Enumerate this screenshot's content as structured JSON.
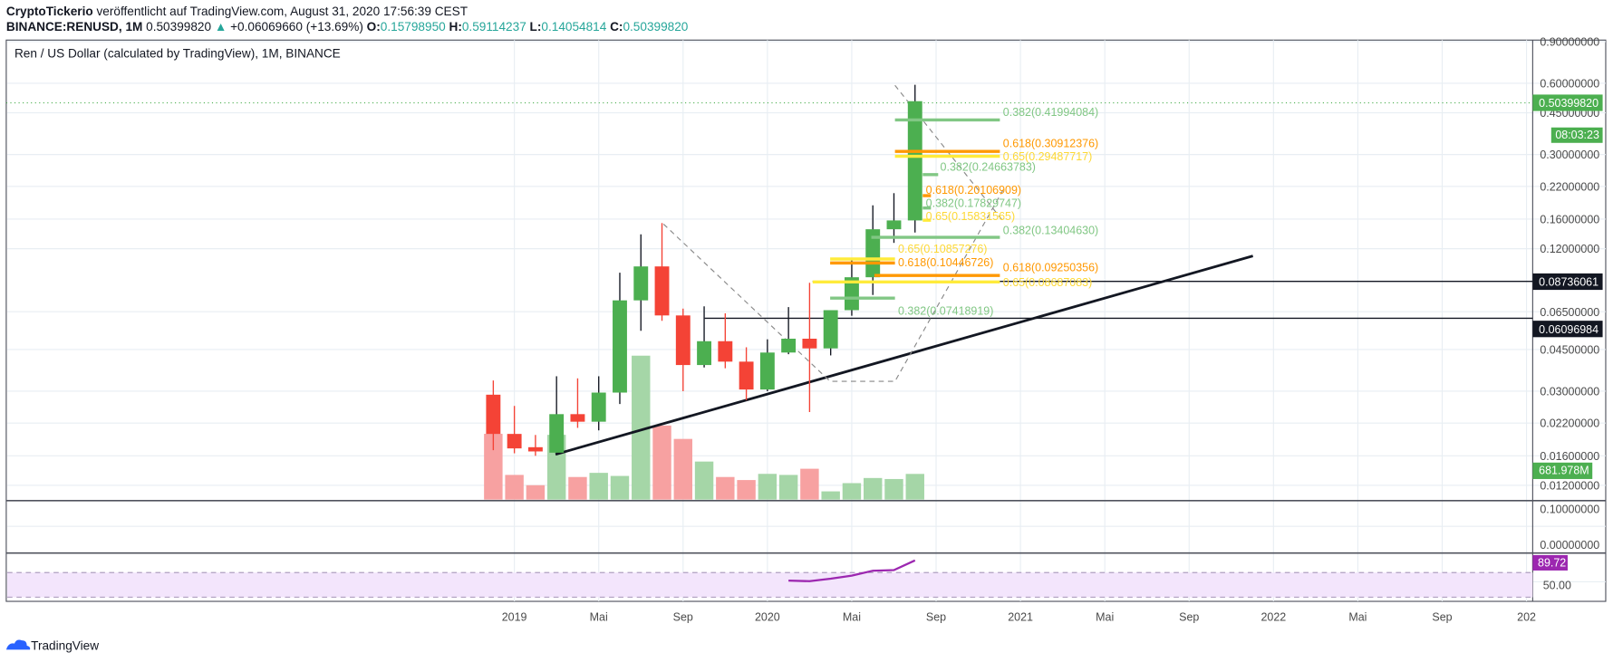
{
  "header": {
    "author": "CryptoTickerio",
    "published": " veröffentlicht auf TradingView.com, August 31, 2020 17:56:39 CEST",
    "symbol": "BINANCE:RENUSD, 1M",
    "last": "0.50399820",
    "change": "+0.06069660 (+13.69%)",
    "o_label": "O:",
    "o": "0.15798950",
    "h_label": "H:",
    "h": "0.59114237",
    "l_label": "L:",
    "l": "0.14054814",
    "c_label": "C:",
    "c": "0.50399820"
  },
  "chart_title": "Ren / US Dollar (calculated by TradingView), 1M, BINANCE",
  "colors": {
    "up": "#4caf50",
    "down": "#f44336",
    "fib_green": "#81c784",
    "fib_orange": "#ff9800",
    "fib_yellow": "#ffeb3b",
    "rsi": "#9c27b0"
  },
  "price_axis": [
    "0.90000000",
    "0.60000000",
    "0.45000000",
    "0.30000000",
    "0.22000000",
    "0.16000000",
    "0.12000000",
    "0.06500000",
    "0.04500000",
    "0.03000000",
    "0.02200000",
    "0.01600000",
    "0.01200000"
  ],
  "price_axis_values": [
    0.9,
    0.6,
    0.45,
    0.3,
    0.22,
    0.16,
    0.12,
    0.065,
    0.045,
    0.03,
    0.022,
    0.016,
    0.012
  ],
  "badges": {
    "last_price": "0.50399820",
    "countdown": "08:03:23",
    "level1": "0.08736061",
    "level2": "0.06096984",
    "volume": "681.978M"
  },
  "middle_axis": [
    "0.10000000",
    "0.00000000"
  ],
  "rsi_axis": {
    "value": "89.72",
    "mid": "50.00"
  },
  "time_axis": [
    "2019",
    "Mai",
    "Sep",
    "2020",
    "Mai",
    "Sep",
    "2021",
    "Mai",
    "Sep",
    "2022",
    "Mai",
    "Sep",
    "202"
  ],
  "fib_labels": [
    {
      "text": "0.382(0.41994084)",
      "price": 0.41994084,
      "color": "green"
    },
    {
      "text": "0.618(0.30912376)",
      "price": 0.30912376,
      "color": "orange"
    },
    {
      "text": "0.65(0.29487717)",
      "price": 0.29487717,
      "color": "yellow"
    },
    {
      "text": "0.382(0.24663783)",
      "price": 0.24663783,
      "color": "green"
    },
    {
      "text": "0.618(0.20106909)",
      "price": 0.20106909,
      "color": "orange"
    },
    {
      "text": "0.382(0.17829747)",
      "price": 0.17829747,
      "color": "green"
    },
    {
      "text": "0.65(0.15831565)",
      "price": 0.15831565,
      "color": "yellow"
    },
    {
      "text": "0.382(0.13404630)",
      "price": 0.1340463,
      "color": "green"
    },
    {
      "text": "0.65(0.10857276)",
      "price": 0.10857276,
      "color": "yellow"
    },
    {
      "text": "0.618(0.10446726)",
      "price": 0.10446726,
      "color": "orange"
    },
    {
      "text": "0.618(0.09250356)",
      "price": 0.09250356,
      "color": "orange"
    },
    {
      "text": "0.65(0.08687083)",
      "price": 0.08687083,
      "color": "yellow"
    },
    {
      "text": "0.382(0.07418919)",
      "price": 0.07418919,
      "color": "green"
    }
  ],
  "footer": {
    "brand": "TradingView"
  },
  "chart_data": {
    "type": "candlestick",
    "title": "Ren / US Dollar (calculated by TradingView), 1M, BINANCE",
    "scale": "log",
    "months": [
      "2018-12",
      "2019-01",
      "2019-02",
      "2019-03",
      "2019-04",
      "2019-05",
      "2019-06",
      "2019-07",
      "2019-08",
      "2019-09",
      "2019-10",
      "2019-11",
      "2019-12",
      "2020-01",
      "2020-02",
      "2020-03",
      "2020-04",
      "2020-05",
      "2020-06",
      "2020-07",
      "2020-08"
    ],
    "ohlc": [
      [
        0.029,
        0.0333,
        0.0169,
        0.0198
      ],
      [
        0.0198,
        0.026,
        0.0164,
        0.0172
      ],
      [
        0.0174,
        0.0196,
        0.016,
        0.0167
      ],
      [
        0.0165,
        0.0347,
        0.0162,
        0.024
      ],
      [
        0.024,
        0.034,
        0.021,
        0.0223
      ],
      [
        0.0223,
        0.0347,
        0.0205,
        0.0296
      ],
      [
        0.0296,
        0.095,
        0.0265,
        0.0726
      ],
      [
        0.0726,
        0.138,
        0.054,
        0.101
      ],
      [
        0.101,
        0.154,
        0.0595,
        0.0627
      ],
      [
        0.0627,
        0.067,
        0.03,
        0.0387
      ],
      [
        0.0387,
        0.0685,
        0.0378,
        0.0488
      ],
      [
        0.0488,
        0.064,
        0.0375,
        0.04
      ],
      [
        0.04,
        0.046,
        0.0275,
        0.0305
      ],
      [
        0.0305,
        0.0497,
        0.03,
        0.0437
      ],
      [
        0.0437,
        0.068,
        0.043,
        0.05
      ],
      [
        0.05,
        0.0861,
        0.0245,
        0.0455
      ],
      [
        0.0455,
        0.066,
        0.0425,
        0.066
      ],
      [
        0.066,
        0.108,
        0.0625,
        0.0909
      ],
      [
        0.0909,
        0.183,
        0.0765,
        0.145
      ],
      [
        0.145,
        0.206,
        0.127,
        0.158
      ],
      [
        0.158,
        0.591,
        0.1405,
        0.504
      ]
    ],
    "volume_m": [
      1747,
      655,
      382,
      1720,
      600,
      710,
      628,
      3822,
      1966,
      1611,
      1010,
      600,
      519,
      683,
      655,
      819,
      218,
      437,
      573,
      546,
      682
    ],
    "rsi": {
      "months": [
        "2020-02",
        "2020-03",
        "2020-04",
        "2020-05",
        "2020-06",
        "2020-07",
        "2020-08"
      ],
      "values": [
        57,
        56,
        60,
        65,
        73,
        74,
        89.72
      ],
      "upper": 70,
      "lower": 30
    },
    "levels": [
      0.08736061,
      0.06096984
    ]
  }
}
